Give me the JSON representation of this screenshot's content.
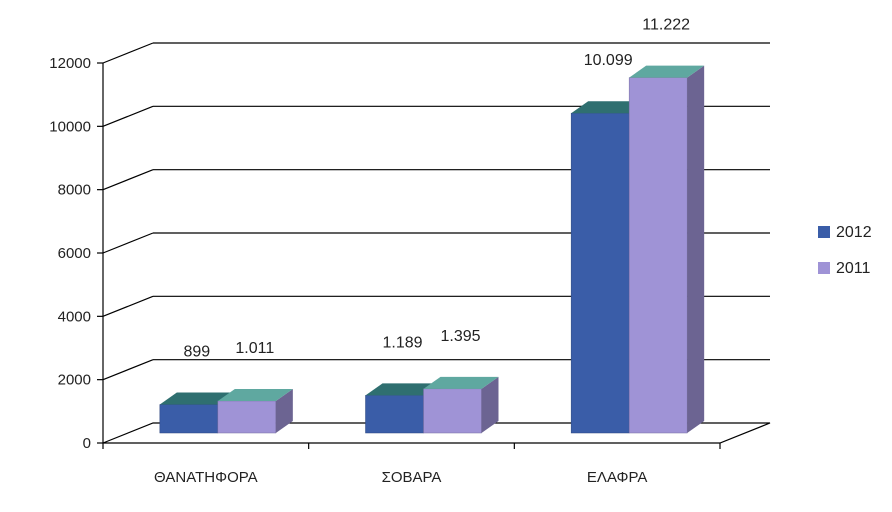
{
  "chart_data": {
    "type": "bar",
    "title": "",
    "xlabel": "",
    "ylabel": "",
    "categories": [
      "ΘΑΝΑΤΗΦΟΡΑ",
      "ΣΟΒΑΡΑ",
      "ΕΛΑΦΡΑ"
    ],
    "series": [
      {
        "name": "2012",
        "values": [
          899,
          1189,
          10099
        ],
        "labels": [
          "899",
          "1.189",
          "10.099"
        ],
        "color": "#3a5da8"
      },
      {
        "name": "2011",
        "values": [
          1011,
          1395,
          11222
        ],
        "labels": [
          "1.011",
          "1.395",
          "11.222"
        ],
        "color": "#9f93d6"
      }
    ],
    "ylim": [
      0,
      12000
    ],
    "yticks": [
      0,
      2000,
      4000,
      6000,
      8000,
      10000,
      12000
    ],
    "grid": true,
    "legend": "right",
    "three_d": true
  }
}
